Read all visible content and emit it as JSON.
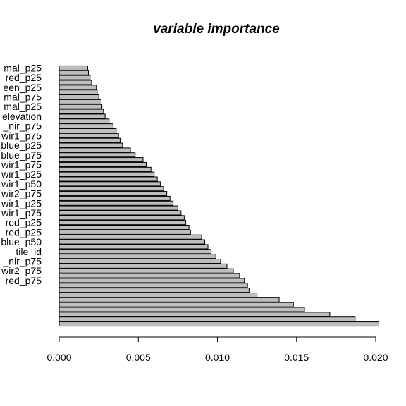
{
  "chart_data": {
    "type": "bar",
    "orientation": "horizontal",
    "title": "variable importance",
    "xlabel": "",
    "ylabel": "",
    "xlim": [
      0,
      0.0205
    ],
    "x_ticks": [
      0.0,
      0.005,
      0.01,
      0.015,
      0.02
    ],
    "x_tick_labels": [
      "0.000",
      "0.005",
      "0.010",
      "0.015",
      "0.020"
    ],
    "bar_color": "#bebebe",
    "bar_border_color": "#000000",
    "grid": false,
    "legend": "none",
    "y_tick_labels_visible": [
      {
        "bar_index": 0,
        "text": "mal_p25"
      },
      {
        "bar_index": 2,
        "text": "red_p25"
      },
      {
        "bar_index": 4,
        "text": "een_p25"
      },
      {
        "bar_index": 6,
        "text": "mal_p75"
      },
      {
        "bar_index": 8,
        "text": "mal_p25"
      },
      {
        "bar_index": 10,
        "text": "elevation"
      },
      {
        "bar_index": 12,
        "text": "_nir_p75"
      },
      {
        "bar_index": 14,
        "text": "wir1_p75"
      },
      {
        "bar_index": 16,
        "text": "blue_p25"
      },
      {
        "bar_index": 18,
        "text": "blue_p75"
      },
      {
        "bar_index": 20,
        "text": "wir1_p75"
      },
      {
        "bar_index": 22,
        "text": "wir1_p25"
      },
      {
        "bar_index": 24,
        "text": "wir1_p50"
      },
      {
        "bar_index": 26,
        "text": "wir2_p75"
      },
      {
        "bar_index": 28,
        "text": "wir1_p25"
      },
      {
        "bar_index": 30,
        "text": "wir1_p75"
      },
      {
        "bar_index": 32,
        "text": "red_p25"
      },
      {
        "bar_index": 34,
        "text": "red_p25"
      },
      {
        "bar_index": 36,
        "text": "blue_p50"
      },
      {
        "bar_index": 38,
        "text": "tile_id"
      },
      {
        "bar_index": 40,
        "text": "_nir_p75"
      },
      {
        "bar_index": 42,
        "text": "wir2_p75"
      },
      {
        "bar_index": 44,
        "text": "red_p75"
      }
    ],
    "values": [
      0.0018,
      0.00185,
      0.00195,
      0.00205,
      0.00235,
      0.0024,
      0.0025,
      0.00265,
      0.0027,
      0.0028,
      0.0029,
      0.00315,
      0.0034,
      0.0036,
      0.00375,
      0.00385,
      0.004,
      0.0045,
      0.0048,
      0.0053,
      0.0055,
      0.0058,
      0.006,
      0.0062,
      0.0064,
      0.0066,
      0.0068,
      0.007,
      0.0072,
      0.0075,
      0.0077,
      0.0079,
      0.008,
      0.0082,
      0.0083,
      0.009,
      0.0092,
      0.0094,
      0.0096,
      0.0099,
      0.0102,
      0.0106,
      0.011,
      0.0114,
      0.0117,
      0.0119,
      0.012,
      0.0125,
      0.0139,
      0.0148,
      0.0155,
      0.0171,
      0.0187,
      0.0202
    ]
  }
}
